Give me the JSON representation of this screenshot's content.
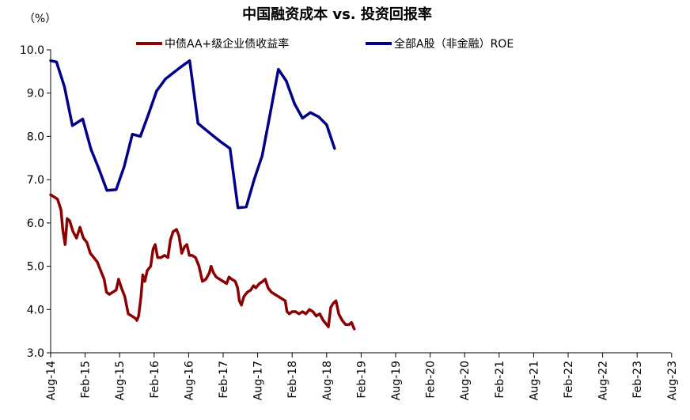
{
  "chart_data": {
    "type": "line",
    "title": "中国融资成本 vs. 投资回报率",
    "unit_label": "（%）",
    "ylim": [
      3.0,
      10.0
    ],
    "yticks": [
      "3.0",
      "4.0",
      "5.0",
      "6.0",
      "7.0",
      "8.0",
      "9.0",
      "10.0"
    ],
    "x_categories": [
      "Aug-14",
      "Feb-15",
      "Aug-15",
      "Feb-16",
      "Aug-16",
      "Feb-17",
      "Aug-17",
      "Feb-18",
      "Aug-18",
      "Feb-19",
      "Aug-19",
      "Feb-20",
      "Aug-20",
      "Feb-21",
      "Aug-21",
      "Feb-22",
      "Aug-22",
      "Feb-23",
      "Aug-23"
    ],
    "grid": false,
    "legend_position": "top",
    "series": [
      {
        "name": "中债AA+级企业债收益率",
        "color": "#8b0000",
        "points": [
          [
            0.0,
            6.65
          ],
          [
            0.1,
            6.6
          ],
          [
            0.2,
            6.55
          ],
          [
            0.3,
            6.3
          ],
          [
            0.35,
            5.85
          ],
          [
            0.42,
            5.5
          ],
          [
            0.48,
            6.1
          ],
          [
            0.55,
            6.05
          ],
          [
            0.65,
            5.8
          ],
          [
            0.75,
            5.65
          ],
          [
            0.85,
            5.9
          ],
          [
            0.95,
            5.65
          ],
          [
            1.05,
            5.55
          ],
          [
            1.15,
            5.3
          ],
          [
            1.25,
            5.2
          ],
          [
            1.35,
            5.1
          ],
          [
            1.45,
            4.9
          ],
          [
            1.55,
            4.7
          ],
          [
            1.62,
            4.4
          ],
          [
            1.7,
            4.35
          ],
          [
            1.8,
            4.4
          ],
          [
            1.9,
            4.45
          ],
          [
            1.97,
            4.7
          ],
          [
            2.05,
            4.5
          ],
          [
            2.15,
            4.3
          ],
          [
            2.25,
            3.9
          ],
          [
            2.35,
            3.85
          ],
          [
            2.45,
            3.8
          ],
          [
            2.5,
            3.75
          ],
          [
            2.55,
            3.85
          ],
          [
            2.62,
            4.3
          ],
          [
            2.67,
            4.8
          ],
          [
            2.73,
            4.65
          ],
          [
            2.8,
            4.9
          ],
          [
            2.9,
            5.0
          ],
          [
            2.97,
            5.4
          ],
          [
            3.03,
            5.5
          ],
          [
            3.1,
            5.2
          ],
          [
            3.2,
            5.2
          ],
          [
            3.3,
            5.25
          ],
          [
            3.4,
            5.2
          ],
          [
            3.47,
            5.6
          ],
          [
            3.55,
            5.8
          ],
          [
            3.65,
            5.85
          ],
          [
            3.72,
            5.7
          ],
          [
            3.8,
            5.3
          ],
          [
            3.88,
            5.45
          ],
          [
            3.95,
            5.5
          ],
          [
            4.02,
            5.25
          ],
          [
            4.1,
            5.25
          ],
          [
            4.2,
            5.2
          ],
          [
            4.3,
            5.0
          ],
          [
            4.4,
            4.65
          ],
          [
            4.5,
            4.7
          ],
          [
            4.6,
            4.85
          ],
          [
            4.65,
            5.0
          ],
          [
            4.72,
            4.85
          ],
          [
            4.8,
            4.75
          ],
          [
            4.9,
            4.7
          ],
          [
            5.0,
            4.65
          ],
          [
            5.1,
            4.6
          ],
          [
            5.17,
            4.75
          ],
          [
            5.25,
            4.7
          ],
          [
            5.35,
            4.65
          ],
          [
            5.42,
            4.5
          ],
          [
            5.47,
            4.2
          ],
          [
            5.53,
            4.1
          ],
          [
            5.6,
            4.3
          ],
          [
            5.7,
            4.4
          ],
          [
            5.8,
            4.45
          ],
          [
            5.88,
            4.55
          ],
          [
            5.95,
            4.5
          ],
          [
            6.05,
            4.6
          ],
          [
            6.15,
            4.65
          ],
          [
            6.22,
            4.7
          ],
          [
            6.3,
            4.5
          ],
          [
            6.4,
            4.4
          ],
          [
            6.5,
            4.35
          ],
          [
            6.6,
            4.3
          ],
          [
            6.7,
            4.25
          ],
          [
            6.8,
            4.2
          ],
          [
            6.85,
            3.95
          ],
          [
            6.92,
            3.9
          ],
          [
            7.0,
            3.95
          ],
          [
            7.1,
            3.95
          ],
          [
            7.2,
            3.9
          ],
          [
            7.3,
            3.95
          ],
          [
            7.4,
            3.9
          ],
          [
            7.5,
            4.0
          ],
          [
            7.6,
            3.95
          ],
          [
            7.7,
            3.85
          ],
          [
            7.8,
            3.9
          ],
          [
            7.9,
            3.75
          ],
          [
            8.0,
            3.65
          ],
          [
            8.05,
            3.6
          ],
          [
            8.12,
            4.05
          ],
          [
            8.2,
            4.15
          ],
          [
            8.27,
            4.2
          ],
          [
            8.35,
            3.9
          ],
          [
            8.45,
            3.75
          ],
          [
            8.55,
            3.65
          ],
          [
            8.65,
            3.65
          ],
          [
            8.72,
            3.7
          ],
          [
            8.8,
            3.55
          ]
        ]
      },
      {
        "name": "全部A股（非金融）ROE",
        "color": "#00008b",
        "points": [
          [
            0.0,
            9.75
          ],
          [
            0.17,
            9.72
          ],
          [
            0.4,
            9.15
          ],
          [
            0.63,
            8.25
          ],
          [
            0.93,
            8.4
          ],
          [
            1.17,
            7.7
          ],
          [
            1.4,
            7.25
          ],
          [
            1.63,
            6.75
          ],
          [
            1.9,
            6.77
          ],
          [
            2.13,
            7.3
          ],
          [
            2.37,
            8.05
          ],
          [
            2.6,
            8.0
          ],
          [
            2.83,
            8.5
          ],
          [
            3.07,
            9.05
          ],
          [
            3.33,
            9.33
          ],
          [
            3.57,
            9.48
          ],
          [
            3.8,
            9.62
          ],
          [
            4.03,
            9.75
          ],
          [
            4.27,
            8.3
          ],
          [
            4.5,
            8.15
          ],
          [
            4.73,
            8.0
          ],
          [
            4.97,
            7.85
          ],
          [
            5.2,
            7.72
          ],
          [
            5.43,
            6.35
          ],
          [
            5.67,
            6.37
          ],
          [
            5.9,
            7.0
          ],
          [
            6.13,
            7.55
          ],
          [
            6.37,
            8.55
          ],
          [
            6.6,
            9.55
          ],
          [
            6.83,
            9.28
          ],
          [
            7.07,
            8.75
          ],
          [
            7.3,
            8.42
          ],
          [
            7.53,
            8.55
          ],
          [
            7.77,
            8.45
          ],
          [
            8.0,
            8.27
          ],
          [
            8.23,
            7.72
          ]
        ]
      }
    ]
  }
}
